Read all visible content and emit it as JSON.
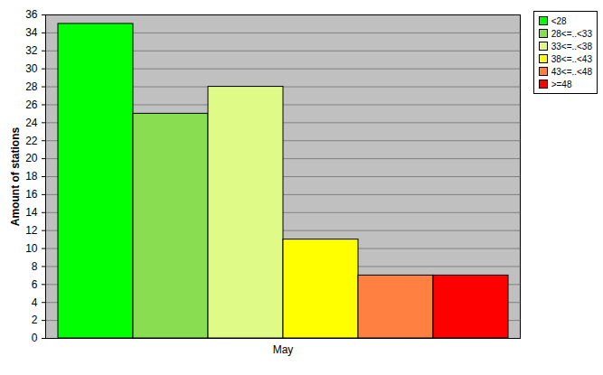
{
  "chart_data": {
    "type": "bar",
    "categories": [
      "May"
    ],
    "y_label": "Amount of stations",
    "series": [
      {
        "name": "<28",
        "color": "#00ff00",
        "values": [
          35
        ]
      },
      {
        "name": "28<=..<33",
        "color": "#88dd50",
        "values": [
          25
        ]
      },
      {
        "name": "33<=..<38",
        "color": "#e0fa88",
        "values": [
          28
        ]
      },
      {
        "name": "38<=..<43",
        "color": "#ffff00",
        "values": [
          11
        ]
      },
      {
        "name": "43<=..<48",
        "color": "#ff8040",
        "values": [
          7
        ]
      },
      {
        "name": ">=48",
        "color": "#ff0000",
        "values": [
          7
        ]
      }
    ],
    "ylim": [
      0,
      36
    ],
    "yticks": [
      0,
      2,
      4,
      6,
      8,
      10,
      12,
      14,
      16,
      18,
      20,
      22,
      24,
      26,
      28,
      30,
      32,
      34,
      36
    ],
    "grid": true,
    "legend": "top-right"
  }
}
